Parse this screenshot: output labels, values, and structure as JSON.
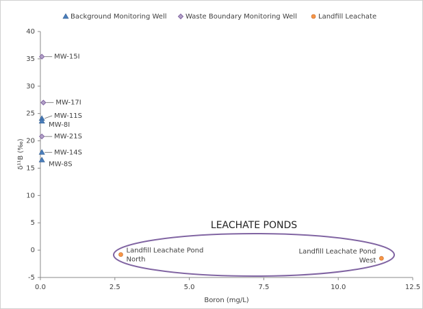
{
  "chart_data": {
    "type": "scatter",
    "x_label": "Boron (mg/L)",
    "y_label": "δ¹¹B (‰)",
    "annotation": "LEACHATE PONDS",
    "legend": "top",
    "grid": false,
    "xlim": [
      0,
      12.5
    ],
    "ylim": [
      -5,
      40
    ],
    "xticks": [
      {
        "value": 0,
        "label": "0.0"
      },
      2.5,
      {
        "value": 5,
        "label": "5.0"
      },
      7.5,
      {
        "value": 10,
        "label": "10.0"
      },
      12.5
    ],
    "yticks": [
      -5,
      0,
      5,
      10,
      15,
      20,
      25,
      30,
      35,
      40
    ],
    "series": [
      {
        "name": "Background Monitoring Well",
        "marker": "triangle",
        "color": "#4a7ebb",
        "x": [
          0.05,
          0.05,
          0.05,
          0.05
        ],
        "y": [
          24.1,
          23.6,
          17.9,
          16.5
        ],
        "labels": [
          [
            "MW-11S"
          ],
          [
            "MW-8I"
          ],
          [
            "MW-14S"
          ],
          [
            "MW-8S"
          ]
        ]
      },
      {
        "name": "Waste Boundary Monitoring Well",
        "marker": "diamond",
        "color": "#8064a2",
        "x": [
          0.05,
          0.1,
          0.05
        ],
        "y": [
          35.4,
          27,
          20.8
        ],
        "labels": [
          [
            "MW-15I"
          ],
          [
            "MW-17I"
          ],
          [
            "MW-21S"
          ]
        ]
      },
      {
        "name": "Landfill Leachate",
        "marker": "circle",
        "color": "#f79646",
        "x": [
          2.7,
          11.45
        ],
        "y": [
          -0.8,
          -1.5
        ],
        "labels": [
          [
            "Landfill Leachate Pond",
            "North"
          ],
          [
            "Landfill Leachate Pond",
            "West"
          ]
        ]
      }
    ]
  }
}
